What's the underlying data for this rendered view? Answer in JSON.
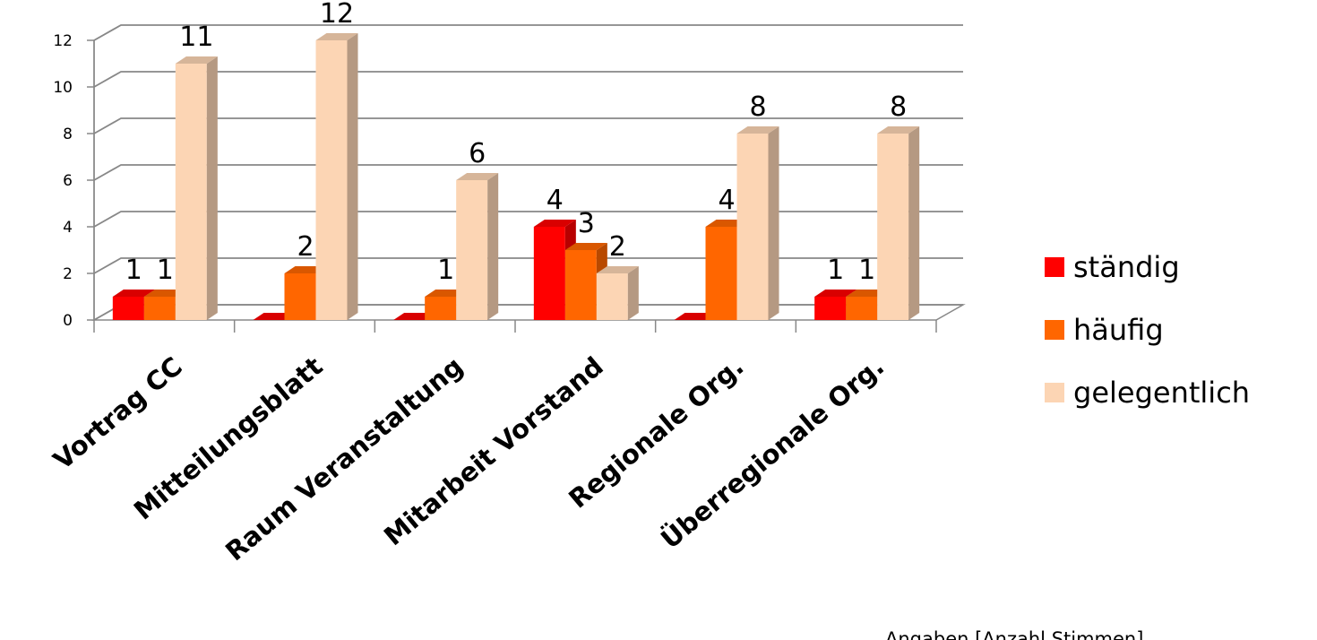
{
  "chart_data": {
    "type": "bar",
    "three_d": true,
    "categories": [
      "Vortrag CC",
      "Mitteilungsblatt",
      "Raum Veranstaltung",
      "Mitarbeit Vorstand",
      "Regionale Org.",
      "Überregionale Org."
    ],
    "series": [
      {
        "name": "ständig",
        "color": "#ff0000",
        "values": [
          1,
          0,
          0,
          4,
          0,
          1
        ]
      },
      {
        "name": "häufig",
        "color": "#ff6600",
        "values": [
          1,
          2,
          1,
          3,
          4,
          1
        ]
      },
      {
        "name": "gelegentlich",
        "color": "#fcd5b4",
        "values": [
          11,
          12,
          6,
          2,
          8,
          8
        ]
      }
    ],
    "data_labels": [
      [
        "1",
        "",
        "",
        "4",
        "",
        "1"
      ],
      [
        "1",
        "2",
        "1",
        "3",
        "4",
        "1"
      ],
      [
        "11",
        "12",
        "6",
        "2",
        "8",
        "8"
      ]
    ],
    "yticks": [
      0,
      2,
      4,
      6,
      8,
      10,
      12
    ],
    "ylim": [
      0,
      12
    ],
    "grid": true,
    "legend_position": "right",
    "note": "Angaben [Anzahl Stimmen]"
  }
}
